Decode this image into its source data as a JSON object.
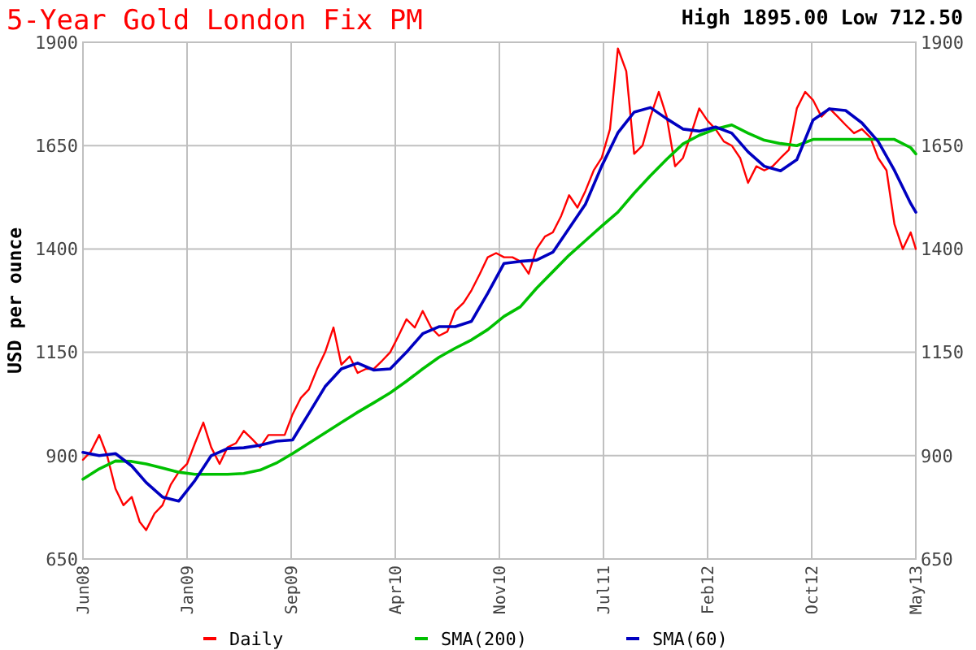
{
  "chart_data": {
    "type": "line",
    "title": "5-Year Gold London Fix PM",
    "subtitle": "High 1895.00 Low 712.50",
    "ylabel": "USD per ounce",
    "xlim": [
      "2008-06-16",
      "2013-05-13"
    ],
    "xticks": [
      {
        "value": "2008-06-16",
        "label": "Jun08"
      },
      {
        "value": "2009-01-26",
        "label": "Jan09"
      },
      {
        "value": "2009-09-07",
        "label": "Sep09"
      },
      {
        "value": "2010-04-19",
        "label": "Apr10"
      },
      {
        "value": "2010-11-29",
        "label": "Nov10"
      },
      {
        "value": "2011-07-11",
        "label": "Jul11"
      },
      {
        "value": "2012-02-20",
        "label": "Feb12"
      },
      {
        "value": "2012-10-01",
        "label": "Oct12"
      },
      {
        "value": "2013-05-13",
        "label": "May13"
      }
    ],
    "ylim": [
      650,
      1900
    ],
    "yticks": [
      650,
      900,
      1150,
      1400,
      1650,
      1900
    ],
    "y2lim": [
      650,
      1900
    ],
    "y2ticks": [
      650,
      900,
      1150,
      1400,
      1650,
      1900
    ],
    "grid": true,
    "legend": "bottom",
    "marker": "none",
    "line_style": "solid",
    "series": [
      {
        "name": "Daily",
        "color": "#ff0000",
        "x": [
          "2008-06-16",
          "2008-07-03",
          "2008-07-21",
          "2008-08-07",
          "2008-08-25",
          "2008-09-11",
          "2008-09-29",
          "2008-10-16",
          "2008-10-30",
          "2008-11-17",
          "2008-12-04",
          "2008-12-22",
          "2009-01-08",
          "2009-01-26",
          "2009-02-12",
          "2009-03-02",
          "2009-03-19",
          "2009-04-06",
          "2009-04-23",
          "2009-05-11",
          "2009-05-28",
          "2009-06-15",
          "2009-07-02",
          "2009-07-20",
          "2009-08-06",
          "2009-08-24",
          "2009-09-10",
          "2009-09-28",
          "2009-10-15",
          "2009-11-02",
          "2009-11-19",
          "2009-12-07",
          "2009-12-24",
          "2010-01-11",
          "2010-01-28",
          "2010-02-15",
          "2010-03-04",
          "2010-03-22",
          "2010-04-08",
          "2010-04-26",
          "2010-05-13",
          "2010-05-31",
          "2010-06-17",
          "2010-07-05",
          "2010-07-22",
          "2010-08-09",
          "2010-08-26",
          "2010-09-13",
          "2010-09-30",
          "2010-10-18",
          "2010-11-04",
          "2010-11-22",
          "2010-12-09",
          "2010-12-27",
          "2011-01-13",
          "2011-01-31",
          "2011-02-17",
          "2011-03-07",
          "2011-03-24",
          "2011-04-11",
          "2011-04-28",
          "2011-05-16",
          "2011-06-02",
          "2011-06-20",
          "2011-07-07",
          "2011-07-25",
          "2011-08-11",
          "2011-08-29",
          "2011-09-15",
          "2011-10-03",
          "2011-10-20",
          "2011-11-07",
          "2011-11-24",
          "2011-12-12",
          "2011-12-29",
          "2012-01-16",
          "2012-02-02",
          "2012-02-20",
          "2012-03-08",
          "2012-03-26",
          "2012-04-12",
          "2012-04-30",
          "2012-05-17",
          "2012-06-04",
          "2012-06-21",
          "2012-07-09",
          "2012-07-26",
          "2012-08-13",
          "2012-08-30",
          "2012-09-17",
          "2012-10-04",
          "2012-10-22",
          "2012-11-08",
          "2012-11-26",
          "2012-12-13",
          "2012-12-31",
          "2013-01-17",
          "2013-02-04",
          "2013-02-21",
          "2013-03-11",
          "2013-03-28",
          "2013-04-15",
          "2013-05-02",
          "2013-05-13"
        ],
        "values": [
          890,
          910,
          950,
          900,
          820,
          780,
          800,
          740,
          720,
          760,
          780,
          830,
          860,
          880,
          930,
          980,
          920,
          880,
          920,
          930,
          960,
          940,
          920,
          950,
          950,
          950,
          1000,
          1040,
          1060,
          1110,
          1150,
          1210,
          1120,
          1140,
          1100,
          1110,
          1110,
          1130,
          1150,
          1190,
          1230,
          1210,
          1250,
          1210,
          1190,
          1200,
          1250,
          1270,
          1300,
          1340,
          1380,
          1390,
          1380,
          1380,
          1370,
          1340,
          1400,
          1430,
          1440,
          1480,
          1530,
          1500,
          1540,
          1590,
          1620,
          1690,
          1885,
          1830,
          1630,
          1650,
          1720,
          1780,
          1720,
          1600,
          1620,
          1680,
          1740,
          1710,
          1690,
          1660,
          1650,
          1620,
          1560,
          1600,
          1590,
          1600,
          1620,
          1640,
          1740,
          1780,
          1760,
          1720,
          1740,
          1720,
          1700,
          1680,
          1690,
          1670,
          1620,
          1590,
          1460,
          1400,
          1440,
          1400
        ]
      },
      {
        "name": "SMA(200)",
        "color": "#00c000",
        "x": [
          "2008-06-16",
          "2008-07-21",
          "2008-08-25",
          "2008-09-29",
          "2008-10-30",
          "2008-12-04",
          "2009-01-08",
          "2009-02-12",
          "2009-03-19",
          "2009-04-23",
          "2009-05-28",
          "2009-07-02",
          "2009-08-06",
          "2009-09-10",
          "2009-10-15",
          "2009-11-19",
          "2009-12-24",
          "2010-01-28",
          "2010-03-04",
          "2010-04-08",
          "2010-05-13",
          "2010-06-17",
          "2010-07-22",
          "2010-08-26",
          "2010-09-30",
          "2010-11-04",
          "2010-12-09",
          "2011-01-13",
          "2011-02-17",
          "2011-03-24",
          "2011-04-28",
          "2011-06-02",
          "2011-07-07",
          "2011-08-11",
          "2011-09-15",
          "2011-10-20",
          "2011-11-24",
          "2011-12-29",
          "2012-02-02",
          "2012-03-08",
          "2012-04-12",
          "2012-05-17",
          "2012-06-21",
          "2012-07-26",
          "2012-08-30",
          "2012-10-04",
          "2012-11-08",
          "2012-12-13",
          "2013-01-17",
          "2013-02-21",
          "2013-03-28",
          "2013-05-02",
          "2013-05-13"
        ],
        "values": [
          843,
          868,
          887,
          886,
          880,
          870,
          860,
          855,
          855,
          855,
          857,
          865,
          882,
          905,
          930,
          955,
          980,
          1005,
          1028,
          1052,
          1080,
          1110,
          1138,
          1160,
          1180,
          1205,
          1237,
          1260,
          1305,
          1345,
          1385,
          1420,
          1455,
          1489,
          1535,
          1577,
          1617,
          1654,
          1675,
          1690,
          1700,
          1680,
          1663,
          1655,
          1650,
          1665,
          1665,
          1665,
          1665,
          1665,
          1665,
          1645,
          1630
        ]
      },
      {
        "name": "SMA(60)",
        "color": "#0000c0",
        "x": [
          "2008-06-16",
          "2008-07-21",
          "2008-08-25",
          "2008-09-29",
          "2008-10-30",
          "2008-12-04",
          "2009-01-08",
          "2009-02-12",
          "2009-03-19",
          "2009-04-23",
          "2009-05-28",
          "2009-07-02",
          "2009-08-06",
          "2009-09-10",
          "2009-10-15",
          "2009-11-19",
          "2009-12-24",
          "2010-01-28",
          "2010-03-04",
          "2010-04-08",
          "2010-05-13",
          "2010-06-17",
          "2010-07-22",
          "2010-08-26",
          "2010-09-30",
          "2010-11-04",
          "2010-12-09",
          "2011-01-13",
          "2011-02-17",
          "2011-03-24",
          "2011-04-28",
          "2011-06-02",
          "2011-07-07",
          "2011-08-11",
          "2011-09-15",
          "2011-10-20",
          "2011-11-24",
          "2011-12-29",
          "2012-02-02",
          "2012-03-08",
          "2012-04-12",
          "2012-05-17",
          "2012-06-21",
          "2012-07-26",
          "2012-08-30",
          "2012-10-04",
          "2012-11-08",
          "2012-12-13",
          "2013-01-17",
          "2013-02-21",
          "2013-03-28",
          "2013-05-02",
          "2013-05-13"
        ],
        "values": [
          908,
          900,
          905,
          875,
          835,
          800,
          790,
          840,
          900,
          917,
          919,
          925,
          935,
          938,
          1002,
          1067,
          1110,
          1124,
          1107,
          1110,
          1150,
          1195,
          1212,
          1212,
          1225,
          1293,
          1365,
          1370,
          1373,
          1392,
          1450,
          1508,
          1600,
          1681,
          1731,
          1742,
          1715,
          1690,
          1685,
          1695,
          1680,
          1635,
          1600,
          1589,
          1616,
          1712,
          1739,
          1735,
          1705,
          1660,
          1590,
          1510,
          1489
        ]
      }
    ]
  }
}
